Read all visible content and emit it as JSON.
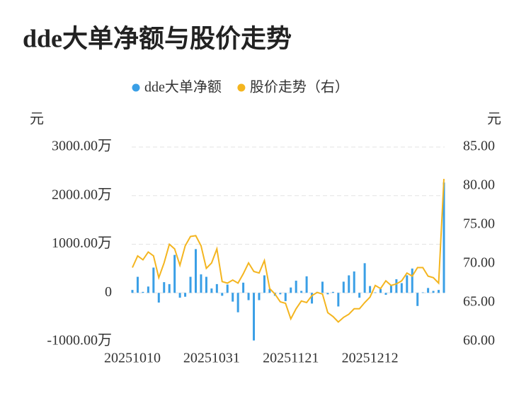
{
  "chart_data": {
    "type": "bar-line",
    "title": "dde大单净额与股价走势",
    "y_axis_label": "元",
    "y2_axis_label": "元",
    "categories": [
      "20251010",
      null,
      null,
      null,
      null,
      null,
      null,
      null,
      null,
      null,
      null,
      null,
      null,
      null,
      null,
      "20251031",
      null,
      null,
      null,
      null,
      null,
      null,
      null,
      null,
      null,
      null,
      null,
      null,
      null,
      null,
      "20251121",
      null,
      null,
      null,
      null,
      null,
      null,
      null,
      null,
      null,
      null,
      null,
      null,
      null,
      null,
      "20251212",
      null,
      null,
      null,
      null,
      null,
      null,
      null,
      null,
      null,
      null,
      null,
      null,
      null,
      null
    ],
    "series": [
      {
        "name": "dde大单净额",
        "color": "#3a9fe6",
        "type": "bar",
        "values": [
          60,
          330,
          20,
          130,
          520,
          -200,
          220,
          180,
          780,
          -100,
          -80,
          330,
          900,
          380,
          330,
          90,
          180,
          -60,
          170,
          -180,
          -400,
          210,
          -150,
          -980,
          -150,
          360,
          80,
          -60,
          -30,
          -170,
          110,
          250,
          40,
          340,
          -220,
          20,
          230,
          -30,
          20,
          -280,
          230,
          360,
          440,
          -100,
          610,
          140,
          10,
          80,
          -40,
          160,
          280,
          200,
          360,
          500,
          -270,
          10,
          100,
          40,
          60,
          2270
        ]
      },
      {
        "name": "股价走势（右）",
        "color": "#f4b51f",
        "type": "line",
        "axis": "y2",
        "values": [
          69.5,
          71.0,
          70.5,
          71.5,
          71.0,
          68.2,
          70.1,
          72.5,
          71.9,
          69.8,
          72.3,
          73.5,
          73.6,
          72.3,
          69.4,
          70.1,
          71.9,
          67.7,
          67.5,
          67.9,
          67.5,
          68.7,
          70.1,
          69.0,
          68.8,
          70.4,
          66.8,
          66.1,
          65.1,
          64.9,
          62.9,
          64.2,
          65.2,
          65.0,
          65.9,
          66.3,
          66.1,
          63.7,
          63.2,
          62.5,
          63.1,
          63.5,
          64.2,
          64.2,
          65.0,
          65.7,
          67.2,
          66.8,
          67.8,
          67.2,
          67.4,
          67.8,
          68.8,
          68.4,
          69.5,
          69.5,
          68.4,
          68.2,
          67.5,
          80.9
        ]
      }
    ],
    "ylim": [
      -1000,
      3000
    ],
    "yticks": [
      {
        "value": -1000,
        "label": "-1000.00万"
      },
      0,
      {
        "value": 1000,
        "label": "1000.00万"
      },
      {
        "value": 2000,
        "label": "2000.00万"
      },
      {
        "value": 3000,
        "label": "3000.00万"
      }
    ],
    "y2lim": [
      60,
      85
    ],
    "y2ticks": [
      {
        "value": 60,
        "label": "60.00"
      },
      {
        "value": 65,
        "label": "65.00"
      },
      {
        "value": 70,
        "label": "70.00"
      },
      {
        "value": 75,
        "label": "75.00"
      },
      {
        "value": 80,
        "label": "80.00"
      },
      {
        "value": 85,
        "label": "85.00"
      }
    ],
    "grid": true
  }
}
